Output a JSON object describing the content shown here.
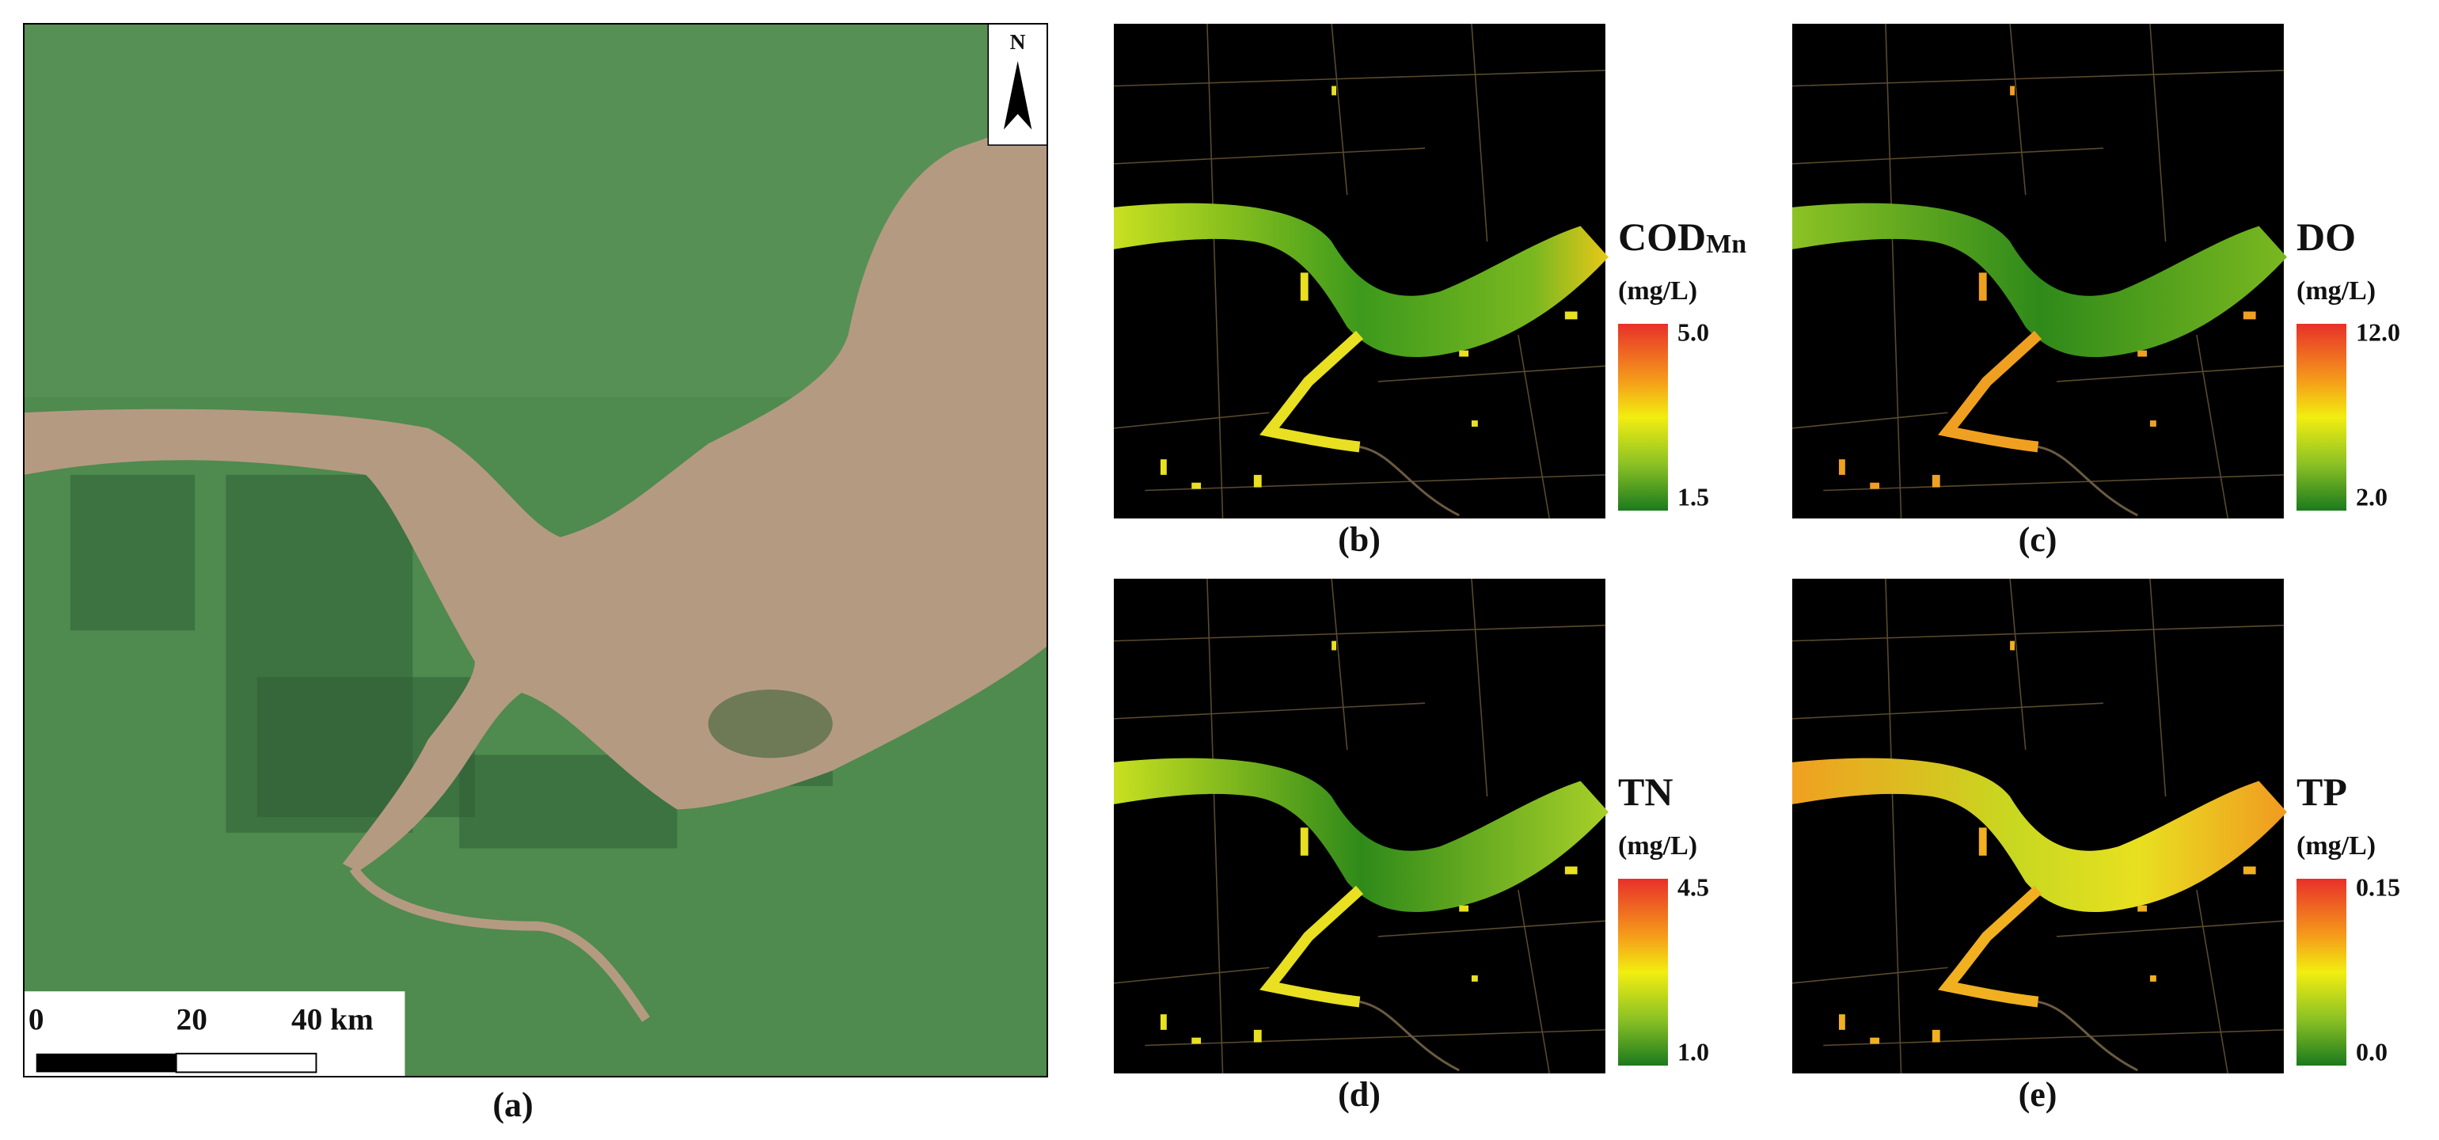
{
  "satellite": {
    "caption": "(a)",
    "north": "N",
    "scale_labels": [
      "0",
      "20",
      "40 km"
    ]
  },
  "maps": [
    {
      "caption": "(b)",
      "parameter": "COD",
      "subscript": "Mn",
      "unit": "(mg/L)",
      "max": "5.0",
      "min": "1.5"
    },
    {
      "caption": "(c)",
      "parameter": "DO",
      "unit": "(mg/L)",
      "max": "12.0",
      "min": "2.0"
    },
    {
      "caption": "(d)",
      "parameter": "TN",
      "unit": "(mg/L)",
      "max": "4.5",
      "min": "1.0"
    },
    {
      "caption": "(e)",
      "parameter": "TP",
      "unit": "(mg/L)",
      "max": "0.15",
      "min": "0.0"
    }
  ]
}
